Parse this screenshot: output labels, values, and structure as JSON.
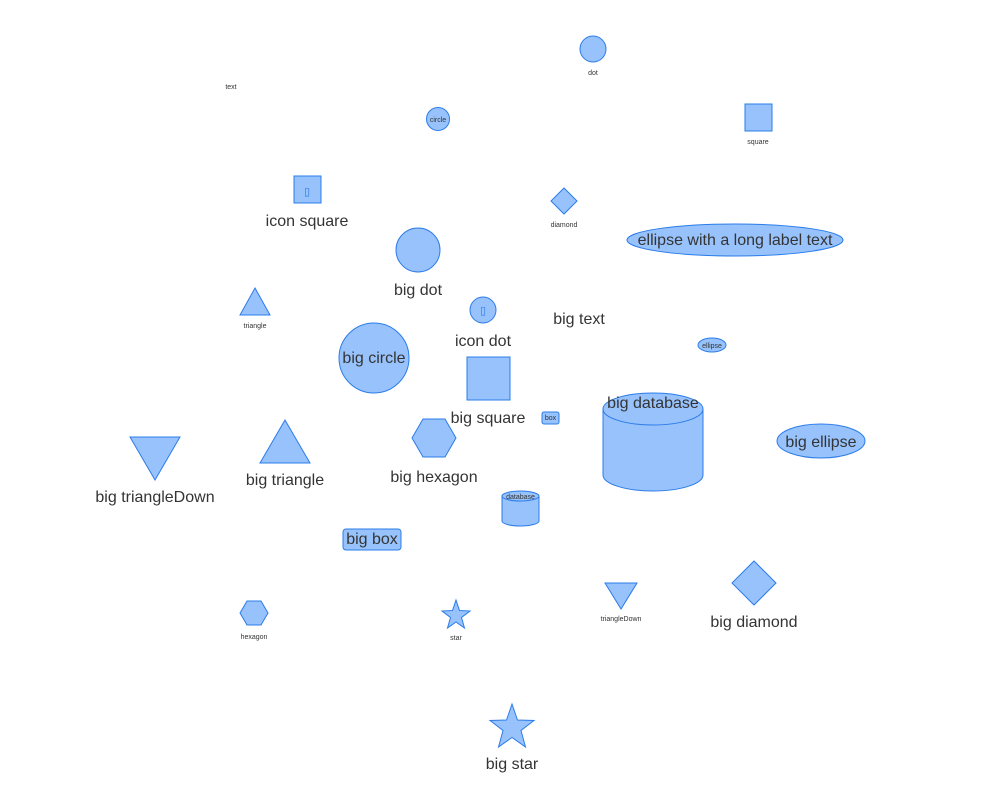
{
  "colors": {
    "fill": "#97c2fc",
    "stroke": "#2b7ce9",
    "label": "#343434"
  },
  "nodes": {
    "dot": "dot",
    "text": "text",
    "circle": "circle",
    "square": "square",
    "icon_square": "icon square",
    "diamond": "diamond",
    "ellipse_long": "ellipse with a long label text",
    "big_dot": "big dot",
    "triangle": "triangle",
    "icon_dot": "icon dot",
    "big_text": "big text",
    "big_circle": "big circle",
    "ellipse": "ellipse",
    "big_square": "big square",
    "box": "box",
    "big_database": "big database",
    "big_ellipse": "big ellipse",
    "big_triangle_down": "big triangleDown",
    "big_triangle": "big triangle",
    "big_hexagon": "big hexagon",
    "database": "database",
    "big_box": "big box",
    "hexagon": "hexagon",
    "star": "star",
    "triangle_down": "triangleDown",
    "big_diamond": "big diamond",
    "big_star": "big star"
  },
  "icons": {
    "icon_square": "missing-glyph-icon",
    "icon_dot": "missing-glyph-icon"
  }
}
